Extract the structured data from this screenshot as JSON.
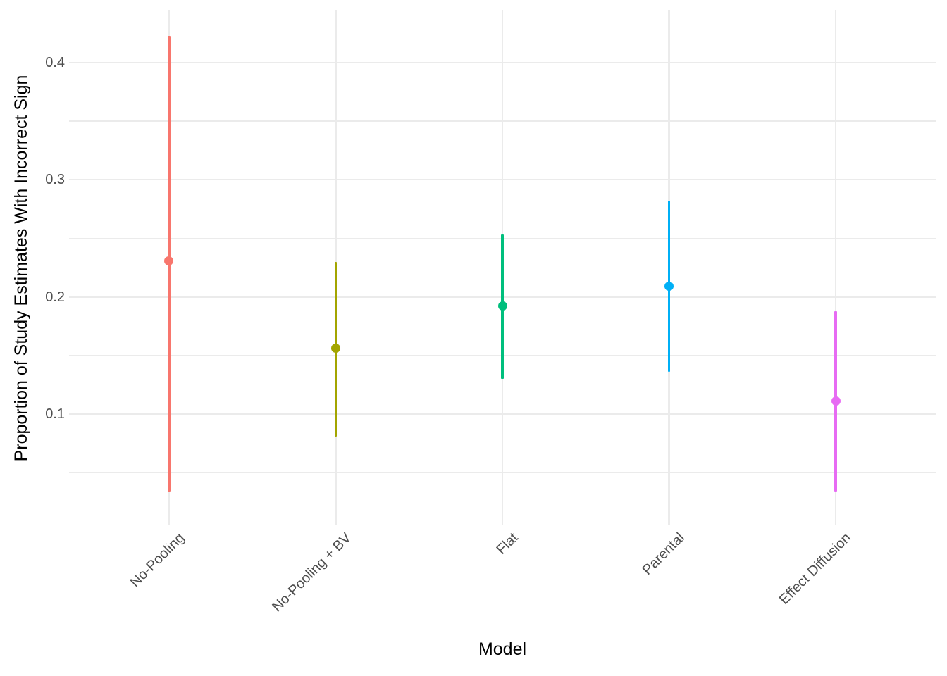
{
  "chart_data": {
    "type": "pointrange",
    "title": "",
    "xlabel": "Model",
    "ylabel": "Proportion of Study Estimates With Incorrect Sign",
    "categories": [
      "No-Pooling",
      "No-Pooling + BV",
      "Flat",
      "Parental",
      "Effect Diffusion"
    ],
    "series": [
      {
        "label": "No-Pooling",
        "estimate": 0.231,
        "lower": 0.034,
        "upper": 0.423,
        "color": "#F8766D"
      },
      {
        "label": "No-Pooling + BV",
        "estimate": 0.156,
        "lower": 0.081,
        "upper": 0.23,
        "color": "#A3A500"
      },
      {
        "label": "Flat",
        "estimate": 0.192,
        "lower": 0.13,
        "upper": 0.253,
        "color": "#00BF7D"
      },
      {
        "label": "Parental",
        "estimate": 0.209,
        "lower": 0.136,
        "upper": 0.282,
        "color": "#00B0F6"
      },
      {
        "label": "Effect Diffusion",
        "estimate": 0.111,
        "lower": 0.034,
        "upper": 0.188,
        "color": "#E76BF3"
      }
    ],
    "y_axis": {
      "ticks": [
        0.1,
        0.2,
        0.3,
        0.4
      ],
      "tick_labels": [
        "0.1",
        "0.2",
        "0.3",
        "0.4"
      ],
      "minor_ticks": [
        0.05,
        0.15,
        0.25,
        0.35
      ],
      "ylim": [
        0.005,
        0.445
      ],
      "grid": true
    },
    "x_axis": {
      "tick_angle_deg": -45,
      "grid": true
    },
    "legend": "none"
  },
  "style": {
    "background_color": "#FFFFFF",
    "grid_color": "#EBEBEB",
    "tick_label_color": "#4D4D4D",
    "axis_title_color": "#000000"
  }
}
